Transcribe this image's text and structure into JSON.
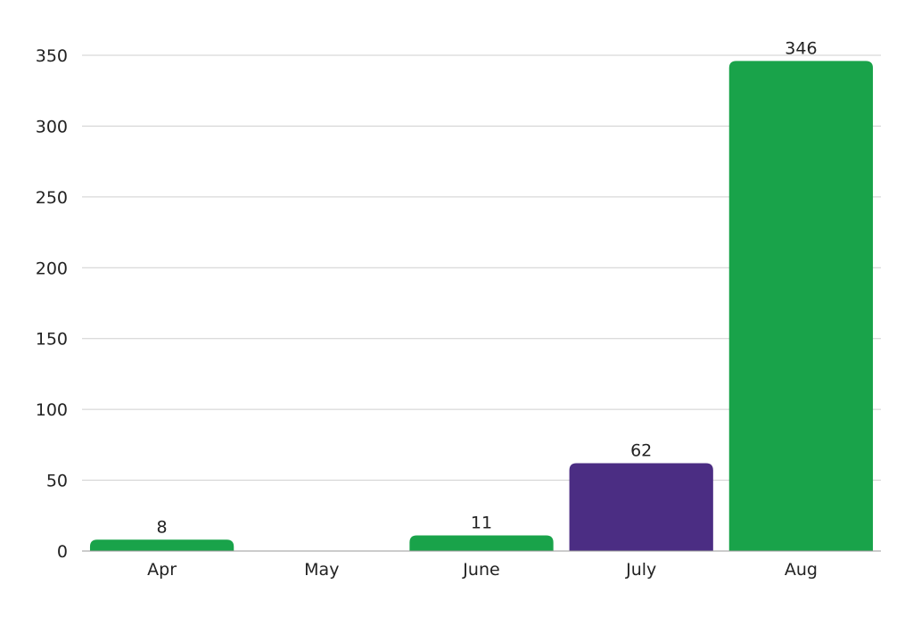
{
  "chart_data": {
    "type": "bar",
    "categories": [
      "Apr",
      "May",
      "June",
      "July",
      "Aug"
    ],
    "values": [
      8,
      0,
      11,
      62,
      346
    ],
    "value_labels": [
      "8",
      "",
      "11",
      "62",
      "346"
    ],
    "colors": [
      "#19a34a",
      "#19a34a",
      "#19a34a",
      "#4b2d83",
      "#19a34a"
    ],
    "ylim": [
      0,
      350
    ],
    "yticks": [
      0,
      50,
      100,
      150,
      200,
      250,
      300,
      350
    ],
    "grid": true,
    "title": "",
    "xlabel": "",
    "ylabel": ""
  }
}
